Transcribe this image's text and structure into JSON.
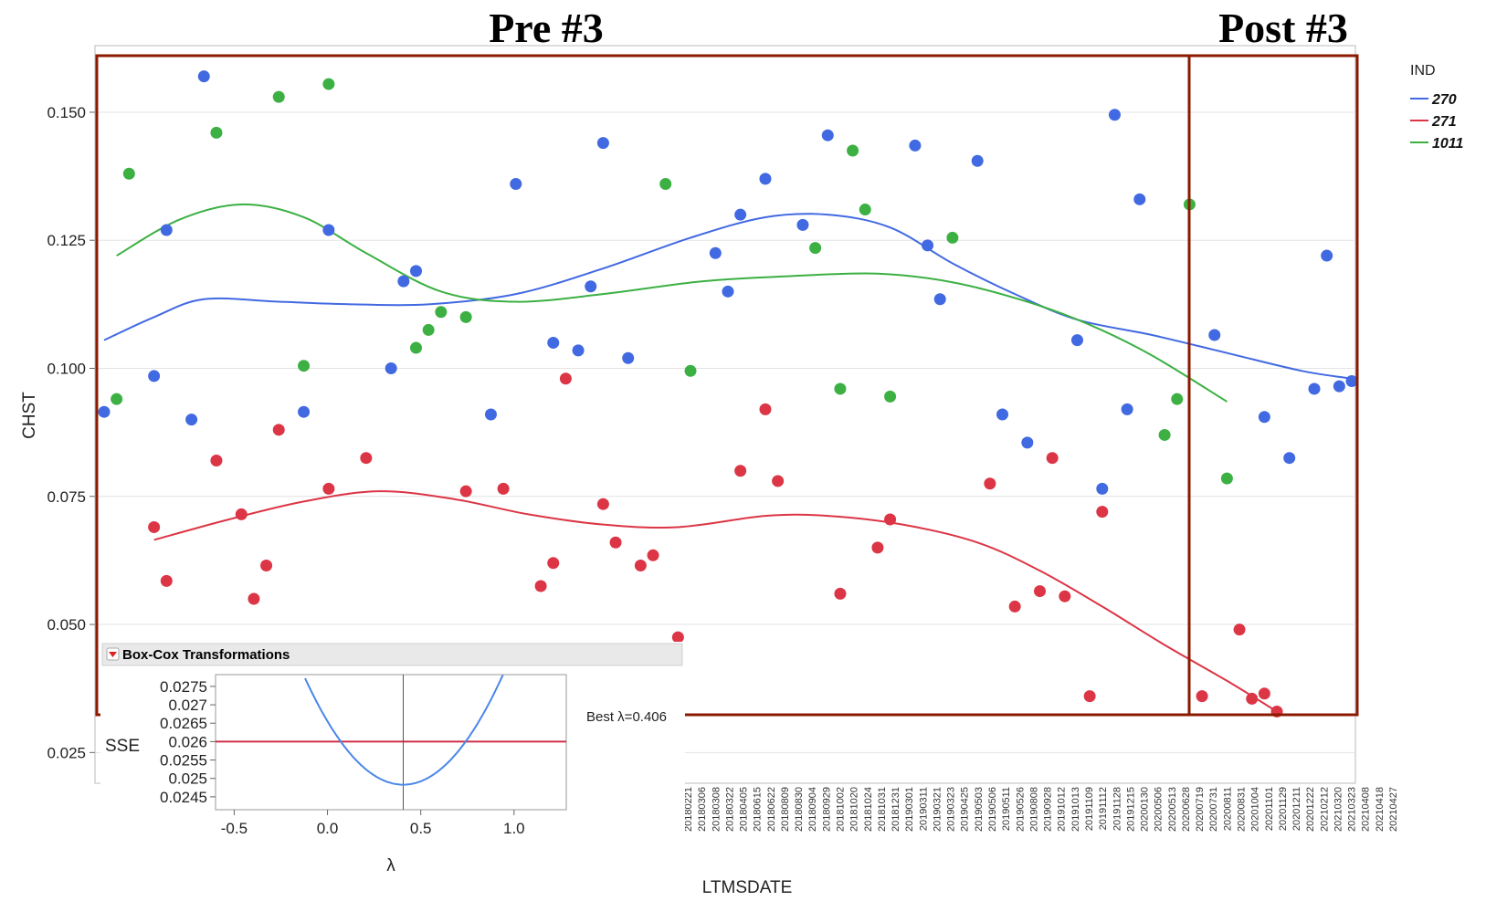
{
  "annotations": {
    "pre": "Pre #3",
    "post": "Post #3"
  },
  "colors": {
    "270": "#4169e1",
    "271": "#dc3545",
    "1011": "#3cb043",
    "box": "#8b1a00"
  },
  "chart_data": {
    "type": "scatter",
    "xlabel": "LTMSDATE",
    "ylabel": "CHST",
    "ylim": [
      0.019,
      0.163
    ],
    "yticks": [
      "0.025",
      "0.050",
      "0.075",
      "0.100",
      "0.125",
      "0.150"
    ],
    "yticks_values": [
      0.025,
      0.05,
      0.075,
      0.1,
      0.125,
      0.15
    ],
    "xticks": [
      "20180221",
      "20180306",
      "20180308",
      "20180322",
      "20180405",
      "20180615",
      "20180622",
      "20180809",
      "20180830",
      "20180904",
      "20180929",
      "20181002",
      "20181020",
      "20181024",
      "20181031",
      "20181231",
      "20190301",
      "20190311",
      "20190321",
      "20190323",
      "20190425",
      "20190503",
      "20190506",
      "20190511",
      "20190526",
      "20190808",
      "20190928",
      "20191012",
      "20191013",
      "20191109",
      "20191112",
      "20191128",
      "20191215",
      "20200130",
      "20200506",
      "20200513",
      "20200628",
      "20200719",
      "20200731",
      "20200811",
      "20200831",
      "20201004",
      "20201101",
      "20201129",
      "20201211",
      "20201222",
      "20210212",
      "20210320",
      "20210323",
      "20210408",
      "20210418",
      "20210427"
    ],
    "x_range": [
      0,
      100
    ],
    "legend": {
      "title": "IND",
      "placement": "right"
    },
    "grid": true,
    "series": [
      {
        "name": "270",
        "points": [
          [
            0,
            0.0915
          ],
          [
            4,
            0.0985
          ],
          [
            5,
            0.127
          ],
          [
            7,
            0.09
          ],
          [
            8,
            0.157
          ],
          [
            16,
            0.0915
          ],
          [
            18,
            0.127
          ],
          [
            23,
            0.1
          ],
          [
            24,
            0.117
          ],
          [
            25,
            0.119
          ],
          [
            31,
            0.091
          ],
          [
            33,
            0.136
          ],
          [
            36,
            0.105
          ],
          [
            38,
            0.1035
          ],
          [
            39,
            0.116
          ],
          [
            40,
            0.144
          ],
          [
            42,
            0.102
          ],
          [
            49,
            0.1225
          ],
          [
            50,
            0.115
          ],
          [
            51,
            0.13
          ],
          [
            53,
            0.137
          ],
          [
            56,
            0.128
          ],
          [
            58,
            0.1455
          ],
          [
            65,
            0.1435
          ],
          [
            66,
            0.124
          ],
          [
            67,
            0.1135
          ],
          [
            70,
            0.1405
          ],
          [
            72,
            0.091
          ],
          [
            74,
            0.0855
          ],
          [
            78,
            0.1055
          ],
          [
            80,
            0.0765
          ],
          [
            81,
            0.1495
          ],
          [
            82,
            0.092
          ],
          [
            83,
            0.133
          ],
          [
            89,
            0.1065
          ],
          [
            93,
            0.0905
          ],
          [
            95,
            0.0825
          ],
          [
            97,
            0.096
          ],
          [
            98,
            0.122
          ],
          [
            99,
            0.0965
          ],
          [
            100,
            0.0975
          ]
        ],
        "smooth": [
          [
            0,
            0.1055
          ],
          [
            4,
            0.11
          ],
          [
            8,
            0.1135
          ],
          [
            14,
            0.113
          ],
          [
            20,
            0.1125
          ],
          [
            26,
            0.1125
          ],
          [
            33,
            0.1145
          ],
          [
            40,
            0.1195
          ],
          [
            47,
            0.1255
          ],
          [
            53,
            0.1295
          ],
          [
            58,
            0.13
          ],
          [
            63,
            0.1275
          ],
          [
            68,
            0.1205
          ],
          [
            73,
            0.1145
          ],
          [
            78,
            0.1095
          ],
          [
            84,
            0.1065
          ],
          [
            90,
            0.103
          ],
          [
            96,
            0.0995
          ],
          [
            100,
            0.098
          ]
        ]
      },
      {
        "name": "271",
        "points": [
          [
            4,
            0.069
          ],
          [
            5,
            0.0585
          ],
          [
            9,
            0.082
          ],
          [
            11,
            0.0715
          ],
          [
            12,
            0.055
          ],
          [
            13,
            0.0615
          ],
          [
            14,
            0.088
          ],
          [
            18,
            0.0765
          ],
          [
            21,
            0.0825
          ],
          [
            29,
            0.076
          ],
          [
            32,
            0.0765
          ],
          [
            35,
            0.0575
          ],
          [
            36,
            0.062
          ],
          [
            37,
            0.098
          ],
          [
            40,
            0.0735
          ],
          [
            41,
            0.066
          ],
          [
            43,
            0.0615
          ],
          [
            44,
            0.0635
          ],
          [
            46,
            0.0475
          ],
          [
            51,
            0.08
          ],
          [
            53,
            0.092
          ],
          [
            54,
            0.078
          ],
          [
            59,
            0.056
          ],
          [
            62,
            0.065
          ],
          [
            63,
            0.0705
          ],
          [
            71,
            0.0775
          ],
          [
            73,
            0.0535
          ],
          [
            75,
            0.0565
          ],
          [
            76,
            0.0825
          ],
          [
            77,
            0.0555
          ],
          [
            79,
            0.036
          ],
          [
            80,
            0.072
          ],
          [
            88,
            0.036
          ],
          [
            91,
            0.049
          ],
          [
            92,
            0.0355
          ],
          [
            93,
            0.0365
          ],
          [
            94,
            0.033
          ]
        ],
        "smooth": [
          [
            4,
            0.0665
          ],
          [
            10,
            0.0705
          ],
          [
            16,
            0.074
          ],
          [
            22,
            0.076
          ],
          [
            28,
            0.0745
          ],
          [
            34,
            0.0715
          ],
          [
            40,
            0.0695
          ],
          [
            46,
            0.069
          ],
          [
            53,
            0.0712
          ],
          [
            58,
            0.0712
          ],
          [
            64,
            0.0695
          ],
          [
            70,
            0.066
          ],
          [
            75,
            0.0605
          ],
          [
            80,
            0.0535
          ],
          [
            85,
            0.046
          ],
          [
            90,
            0.039
          ],
          [
            94,
            0.033
          ]
        ]
      },
      {
        "name": "1011",
        "points": [
          [
            1,
            0.094
          ],
          [
            2,
            0.138
          ],
          [
            9,
            0.146
          ],
          [
            14,
            0.153
          ],
          [
            16,
            0.1005
          ],
          [
            18,
            0.1555
          ],
          [
            25,
            0.104
          ],
          [
            26,
            0.1075
          ],
          [
            27,
            0.111
          ],
          [
            29,
            0.11
          ],
          [
            45,
            0.136
          ],
          [
            47,
            0.0995
          ],
          [
            57,
            0.1235
          ],
          [
            59,
            0.096
          ],
          [
            60,
            0.1425
          ],
          [
            61,
            0.131
          ],
          [
            63,
            0.0945
          ],
          [
            68,
            0.1255
          ],
          [
            85,
            0.087
          ],
          [
            86,
            0.094
          ],
          [
            87,
            0.132
          ],
          [
            90,
            0.0785
          ]
        ],
        "smooth": [
          [
            1,
            0.122
          ],
          [
            6,
            0.129
          ],
          [
            11,
            0.132
          ],
          [
            16,
            0.1295
          ],
          [
            21,
            0.1225
          ],
          [
            27,
            0.115
          ],
          [
            33,
            0.113
          ],
          [
            40,
            0.1145
          ],
          [
            48,
            0.117
          ],
          [
            55,
            0.118
          ],
          [
            62,
            0.1185
          ],
          [
            68,
            0.1168
          ],
          [
            74,
            0.113
          ],
          [
            79,
            0.1085
          ],
          [
            84,
            0.1025
          ],
          [
            90,
            0.0935
          ]
        ]
      }
    ]
  },
  "boxcox": {
    "title": "Box-Cox Transformations",
    "ylabel": "SSE",
    "xlabel": "λ",
    "best_label": "Best λ=0.406",
    "best_lambda": 0.406,
    "xticks": [
      "-0.5",
      "0.0",
      "0.5",
      "1.0"
    ],
    "xticks_values": [
      -0.5,
      0.0,
      0.5,
      1.0
    ],
    "yticks": [
      "0.0275",
      "0.027",
      "0.0265",
      "0.026",
      "0.0255",
      "0.025",
      "0.0245"
    ],
    "yticks_values": [
      0.0275,
      0.027,
      0.0265,
      0.026,
      0.0255,
      0.025,
      0.0245
    ],
    "xlim": [
      -0.6,
      1.28
    ],
    "ylim": [
      0.02415,
      0.02782
    ],
    "threshold": 0.026,
    "sse_min": 0.02483,
    "curve_a": 0.01045
  }
}
